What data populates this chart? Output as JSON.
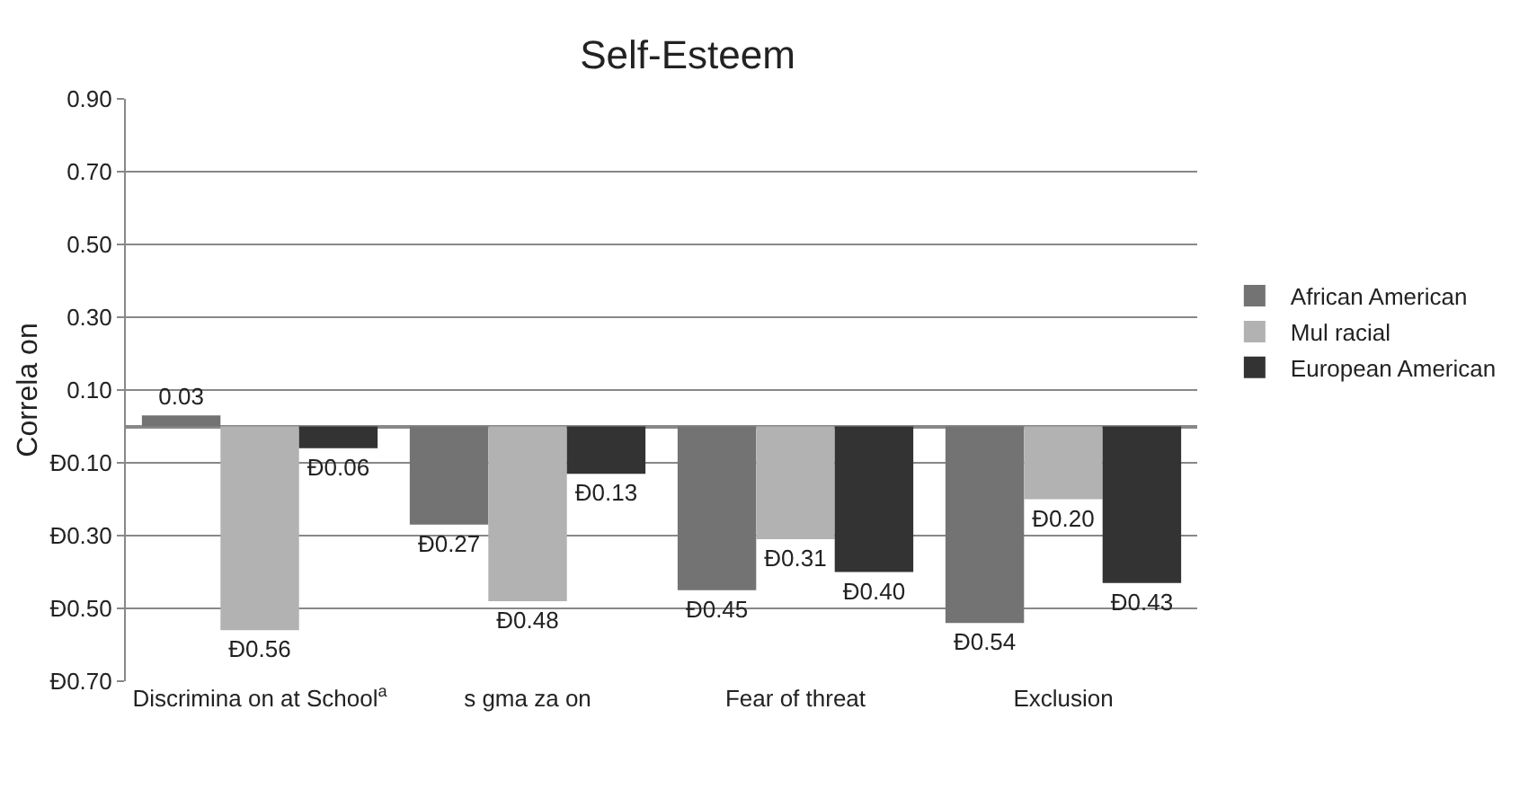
{
  "chart_data": {
    "type": "bar",
    "title": "Self-Esteem",
    "ylabel": "Correla on",
    "categories": [
      "Discrimina on at School$^{a}$",
      "s gma za on",
      "Fear of threat",
      "Exclusion"
    ],
    "series": [
      {
        "name": "African American",
        "color": "#737373",
        "values": [
          0.03,
          -0.27,
          -0.45,
          -0.54
        ],
        "value_labels": [
          "0.03",
          "Ð0.27",
          "Ð0.45",
          "Ð0.54"
        ]
      },
      {
        "name": "Mul racial",
        "color": "#b2b2b2",
        "values": [
          -0.56,
          -0.48,
          -0.31,
          -0.2
        ],
        "value_labels": [
          "Ð0.56",
          "Ð0.48",
          "Ð0.31",
          "Ð0.20"
        ]
      },
      {
        "name": "European American",
        "color": "#333333",
        "values": [
          -0.06,
          -0.13,
          -0.4,
          -0.43
        ],
        "value_labels": [
          "Ð0.06",
          "Ð0.13",
          "Ð0.40",
          "Ð0.43"
        ]
      }
    ],
    "ylim": [
      -0.7,
      0.9
    ],
    "yticks": [
      {
        "value": -0.7,
        "label": "Ð0.70"
      },
      {
        "value": -0.5,
        "label": "Ð0.50"
      },
      {
        "value": -0.3,
        "label": "Ð0.30"
      },
      {
        "value": -0.1,
        "label": "Ð0.10"
      },
      {
        "value": 0.1,
        "label": "0.10"
      },
      {
        "value": 0.3,
        "label": "0.30"
      },
      {
        "value": 0.5,
        "label": "0.50"
      },
      {
        "value": 0.7,
        "label": "0.70"
      },
      {
        "value": 0.9,
        "label": "0.90"
      }
    ],
    "grid": "y",
    "legend": "right"
  }
}
